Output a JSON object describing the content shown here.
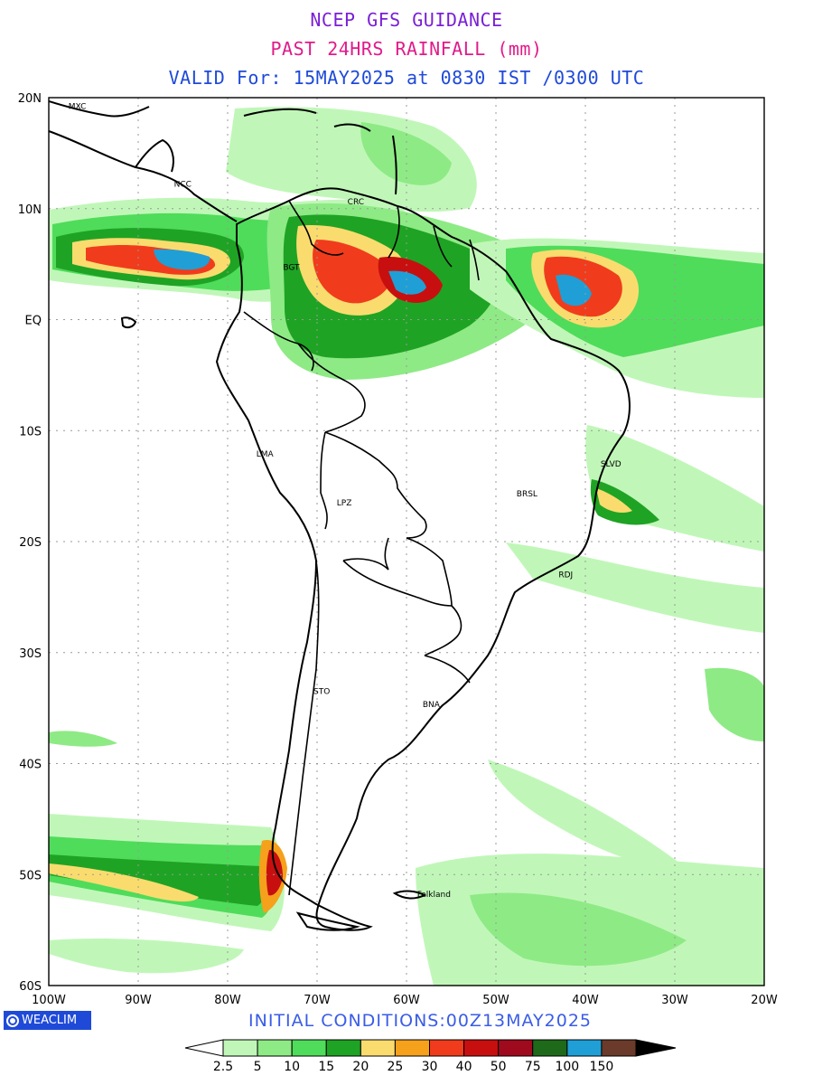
{
  "header": {
    "title": "NCEP GFS GUIDANCE",
    "subtitle": "PAST 24HRS RAINFALL (mm)",
    "valid": "VALID For: 15MAY2025 at 0830 IST /0300 UTC",
    "title_color": "#7a1fd6",
    "subtitle_color": "#e01b8a",
    "valid_color": "#1f4ad8"
  },
  "map": {
    "lon_range": [
      -100,
      -20
    ],
    "lat_range": [
      -60,
      20
    ],
    "lat_ticks": [
      "20N",
      "10N",
      "EQ",
      "10S",
      "20S",
      "30S",
      "40S",
      "50S",
      "60S"
    ],
    "lon_ticks": [
      "100W",
      "90W",
      "80W",
      "70W",
      "60W",
      "50W",
      "40W",
      "30W",
      "20W"
    ],
    "grid": "dotted",
    "city_labels": [
      {
        "label": "MXC",
        "lon": -98,
        "lat": 19.3
      },
      {
        "label": "NCC",
        "lon": -86.2,
        "lat": 12.3
      },
      {
        "label": "CRC",
        "lon": -66.8,
        "lat": 10.7
      },
      {
        "label": "BGT",
        "lon": -74,
        "lat": 4.8
      },
      {
        "label": "LMA",
        "lon": -77,
        "lat": -12
      },
      {
        "label": "LPZ",
        "lon": -68,
        "lat": -16.4
      },
      {
        "label": "BRSL",
        "lon": -47.9,
        "lat": -15.6
      },
      {
        "label": "SLVD",
        "lon": -38.5,
        "lat": -12.9
      },
      {
        "label": "RDJ",
        "lon": -43.2,
        "lat": -22.9
      },
      {
        "label": "STO",
        "lon": -70.6,
        "lat": -33.4
      },
      {
        "label": "BNA",
        "lon": -58.4,
        "lat": -34.6
      },
      {
        "label": "Falkland",
        "lon": -59,
        "lat": -51.7
      }
    ]
  },
  "legend": {
    "levels": [
      "2.5",
      "5",
      "10",
      "15",
      "20",
      "25",
      "30",
      "40",
      "50",
      "75",
      "100",
      "150"
    ],
    "colors": [
      "#c0f7b8",
      "#8eea85",
      "#4fdc5a",
      "#1fa324",
      "#fadc6e",
      "#f5a11c",
      "#f03c1c",
      "#c80f0f",
      "#a00a1e",
      "#1e6a1a",
      "#1f9fd6",
      "#6a3a2a"
    ],
    "under_color": "#ffffff",
    "over_color": "#000000"
  },
  "footer": {
    "brand": "WEACLIM",
    "initial_conditions": "INITIAL  CONDITIONS:00Z13MAY2025",
    "initial_color": "#3a5ce8"
  }
}
